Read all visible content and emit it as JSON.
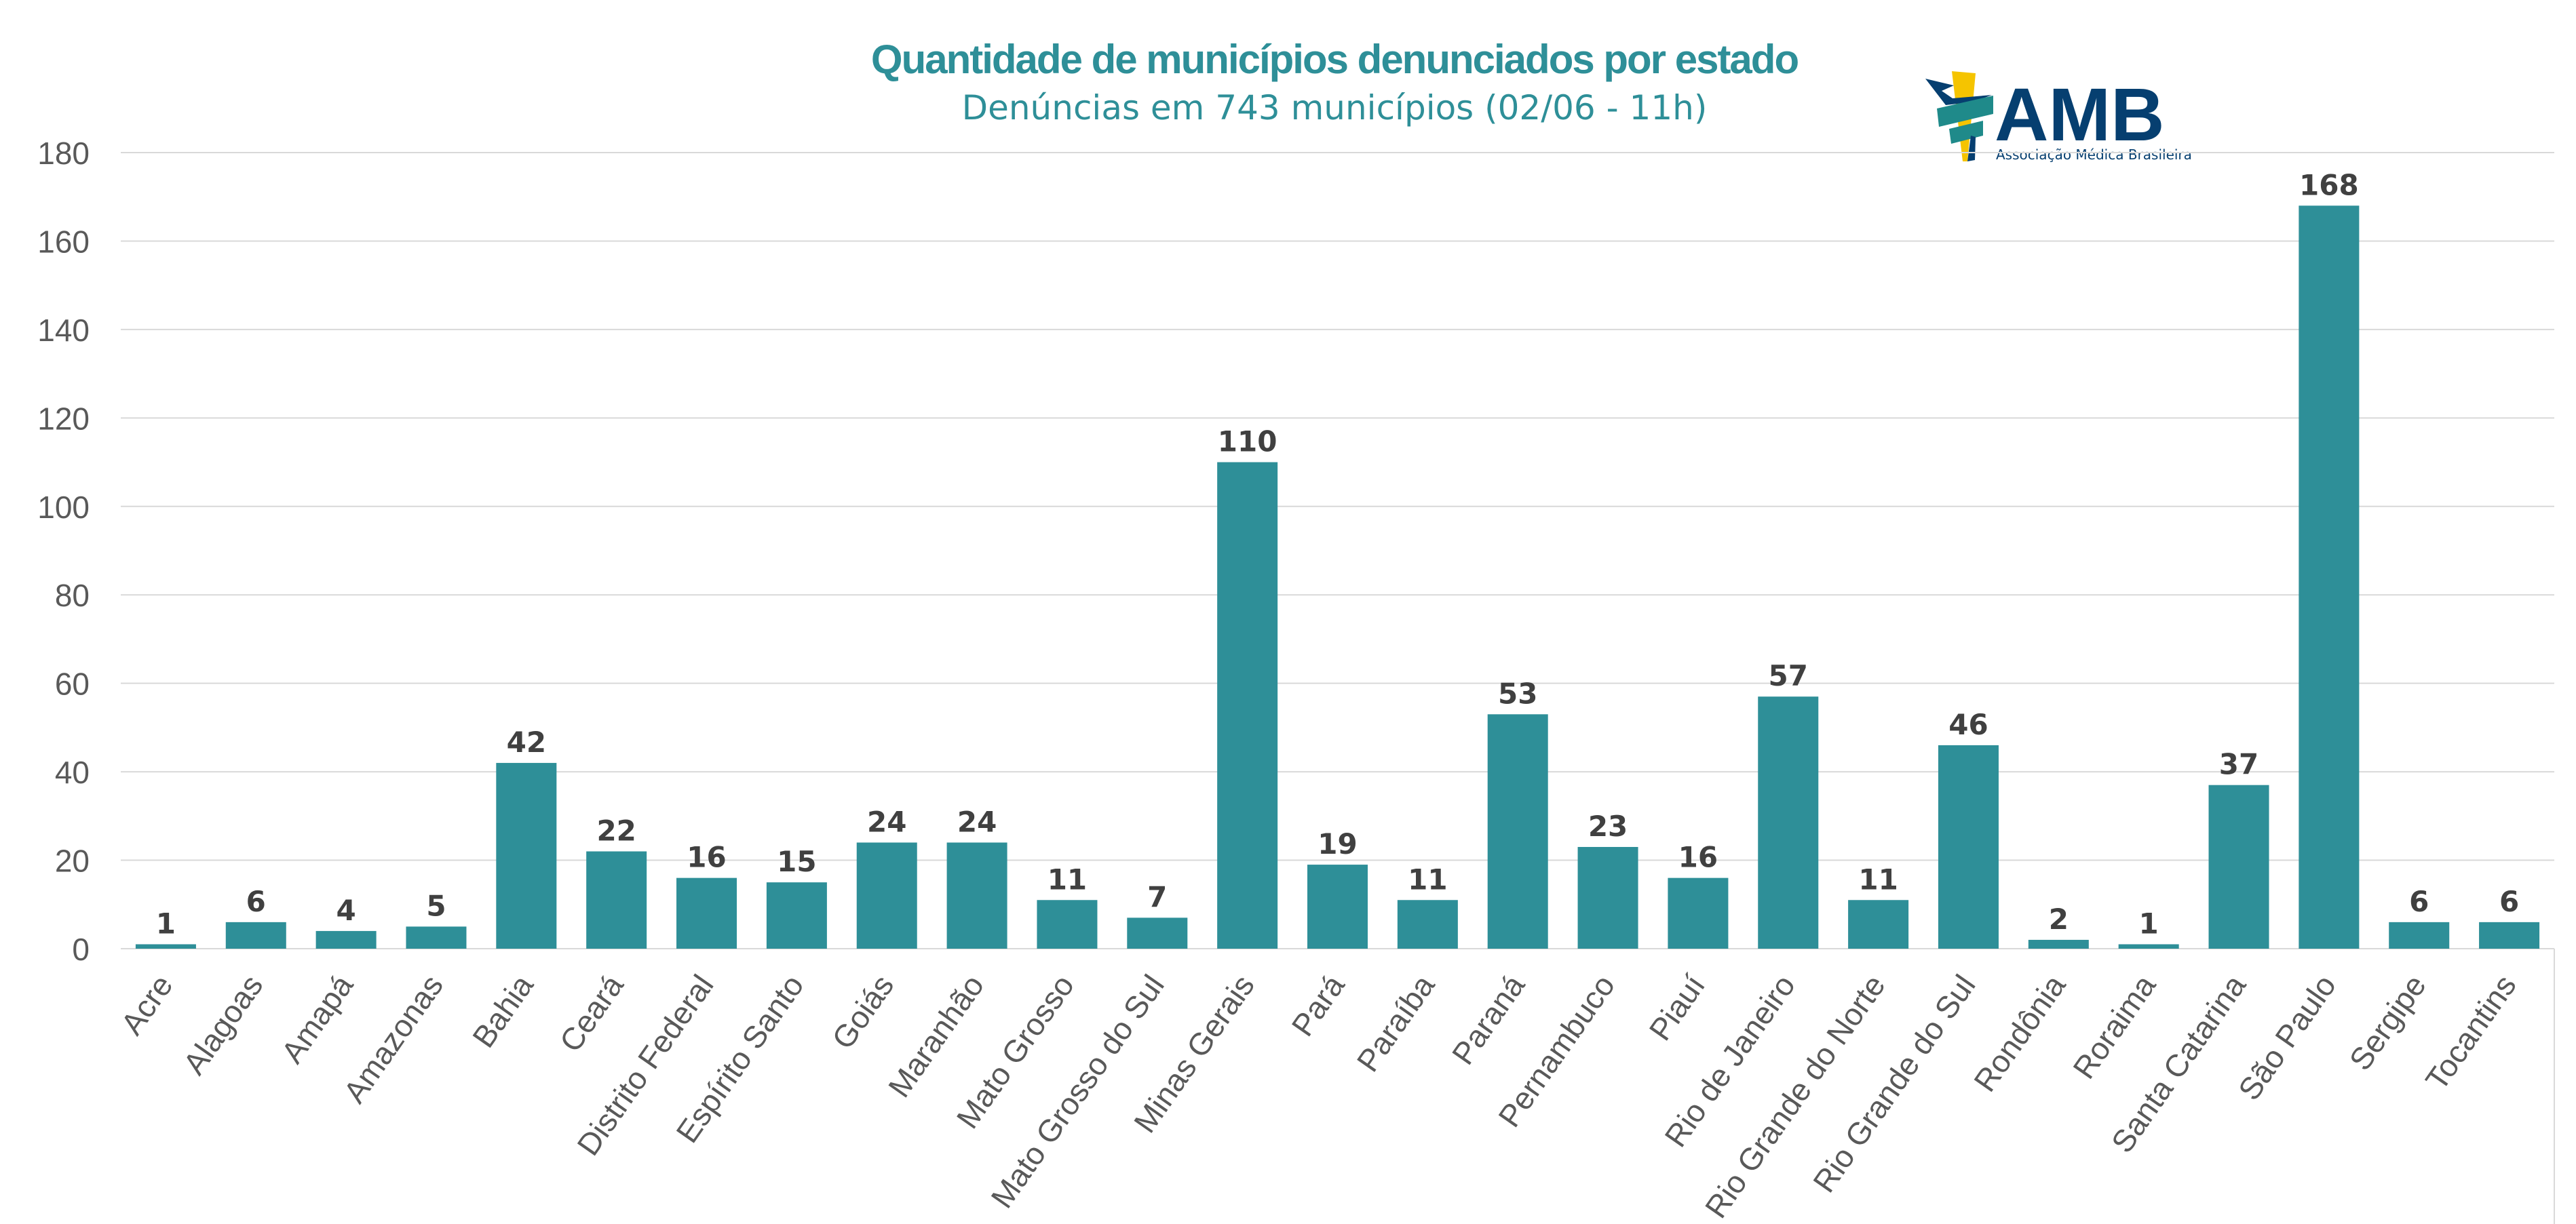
{
  "chart_data": {
    "type": "bar",
    "title": "Quantidade de municípios denunciados por estado",
    "subtitle": "Denúncias em 743 municípios (02/06 - 11h)",
    "xlabel": "",
    "ylabel": "",
    "ylim": [
      0,
      180
    ],
    "yticks": [
      0,
      20,
      40,
      60,
      80,
      100,
      120,
      140,
      160,
      180
    ],
    "grid": true,
    "legend": "none",
    "bar_color": "#2E8F98",
    "categories": [
      "Acre",
      "Alagoas",
      "Amapá",
      "Amazonas",
      "Bahia",
      "Ceará",
      "Distrito Federal",
      "Espírito Santo",
      "Goiás",
      "Maranhão",
      "Mato Grosso",
      "Mato Grosso do Sul",
      "Minas Gerais",
      "Pará",
      "Paraíba",
      "Paraná",
      "Pernambuco",
      "Piauí",
      "Rio de Janeiro",
      "Rio Grande do Norte",
      "Rio Grande do Sul",
      "Rondônia",
      "Roraima",
      "Santa Catarina",
      "São Paulo",
      "Sergipe",
      "Tocantins"
    ],
    "values": [
      1,
      6,
      4,
      5,
      42,
      22,
      16,
      15,
      24,
      24,
      11,
      7,
      110,
      19,
      11,
      53,
      23,
      16,
      57,
      11,
      46,
      2,
      1,
      37,
      168,
      6,
      6
    ]
  },
  "logo": {
    "name": "AMB",
    "subtitle": "Associação Médica Brasileira",
    "colors": {
      "navy": "#063F70",
      "yellow": "#F5C400",
      "teal": "#1F8A8A"
    }
  }
}
